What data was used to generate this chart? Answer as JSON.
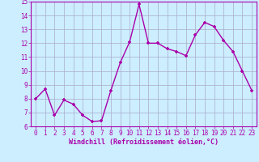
{
  "x": [
    0,
    1,
    2,
    3,
    4,
    5,
    6,
    7,
    8,
    9,
    10,
    11,
    12,
    13,
    14,
    15,
    16,
    17,
    18,
    19,
    20,
    21,
    22,
    23
  ],
  "y": [
    8.0,
    8.7,
    6.8,
    7.9,
    7.6,
    6.8,
    6.35,
    6.4,
    8.6,
    10.6,
    12.1,
    14.8,
    12.0,
    12.0,
    11.6,
    11.4,
    11.1,
    12.6,
    13.5,
    13.2,
    12.2,
    11.4,
    10.0,
    8.6
  ],
  "line_color": "#aa00aa",
  "marker": "+",
  "marker_size": 3,
  "linewidth": 1.0,
  "markeredgewidth": 1.2,
  "xlabel": "Windchill (Refroidissement éolien,°C)",
  "xlim": [
    -0.5,
    23.5
  ],
  "ylim": [
    6,
    15
  ],
  "yticks": [
    6,
    7,
    8,
    9,
    10,
    11,
    12,
    13,
    14,
    15
  ],
  "xticks": [
    0,
    1,
    2,
    3,
    4,
    5,
    6,
    7,
    8,
    9,
    10,
    11,
    12,
    13,
    14,
    15,
    16,
    17,
    18,
    19,
    20,
    21,
    22,
    23
  ],
  "bg_color": "#cceeff",
  "grid_color": "#aaaacc",
  "label_color": "#aa00aa",
  "tick_color": "#aa00aa",
  "spine_color": "#aa00aa",
  "xlabel_fontsize": 6,
  "tick_fontsize": 5.5
}
